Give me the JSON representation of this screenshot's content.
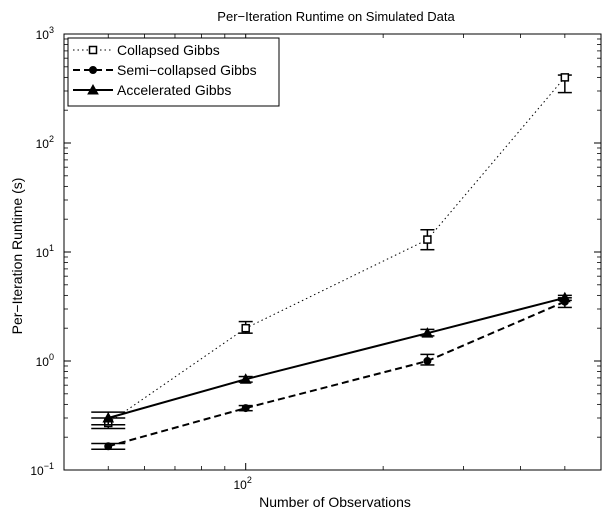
{
  "chart_data": {
    "type": "line",
    "title": "Per−Iteration Runtime on Simulated Data",
    "xlabel": "Number of Observations",
    "ylabel": "Per−Iteration Runtime (s)",
    "x_scale": "log",
    "y_scale": "log",
    "xlim": [
      40,
      600
    ],
    "ylim": [
      0.1,
      1000
    ],
    "x_ticks": [
      {
        "base": "10",
        "exp": "2",
        "value": 100
      }
    ],
    "y_ticks": [
      {
        "base": "10",
        "exp": "−1",
        "value": 0.1
      },
      {
        "base": "10",
        "exp": "0",
        "value": 1
      },
      {
        "base": "10",
        "exp": "1",
        "value": 10
      },
      {
        "base": "10",
        "exp": "2",
        "value": 100
      },
      {
        "base": "10",
        "exp": "3",
        "value": 1000
      }
    ],
    "grid": false,
    "legend_position": "top-left",
    "series": [
      {
        "name": "Collapsed Gibbs",
        "line_style": "dotted",
        "marker": "square",
        "color": "#000000",
        "x": [
          50,
          100,
          250,
          500
        ],
        "y": [
          0.27,
          2.0,
          13.0,
          400
        ],
        "err_low": [
          0.24,
          1.8,
          10.5,
          290
        ],
        "err_high": [
          0.3,
          2.3,
          16.0,
          420
        ]
      },
      {
        "name": "Semi−collapsed Gibbs",
        "line_style": "dashed",
        "marker": "circle",
        "color": "#000000",
        "x": [
          50,
          100,
          250,
          500
        ],
        "y": [
          0.165,
          0.37,
          1.0,
          3.5
        ],
        "err_low": [
          0.155,
          0.35,
          0.92,
          3.1
        ],
        "err_high": [
          0.175,
          0.39,
          1.15,
          3.8
        ]
      },
      {
        "name": "Accelerated Gibbs",
        "line_style": "solid",
        "marker": "triangle",
        "color": "#000000",
        "x": [
          50,
          100,
          250,
          500
        ],
        "y": [
          0.3,
          0.68,
          1.8,
          3.8
        ],
        "err_low": [
          0.26,
          0.64,
          1.7,
          3.6
        ],
        "err_high": [
          0.34,
          0.72,
          1.95,
          4.0
        ]
      }
    ]
  }
}
